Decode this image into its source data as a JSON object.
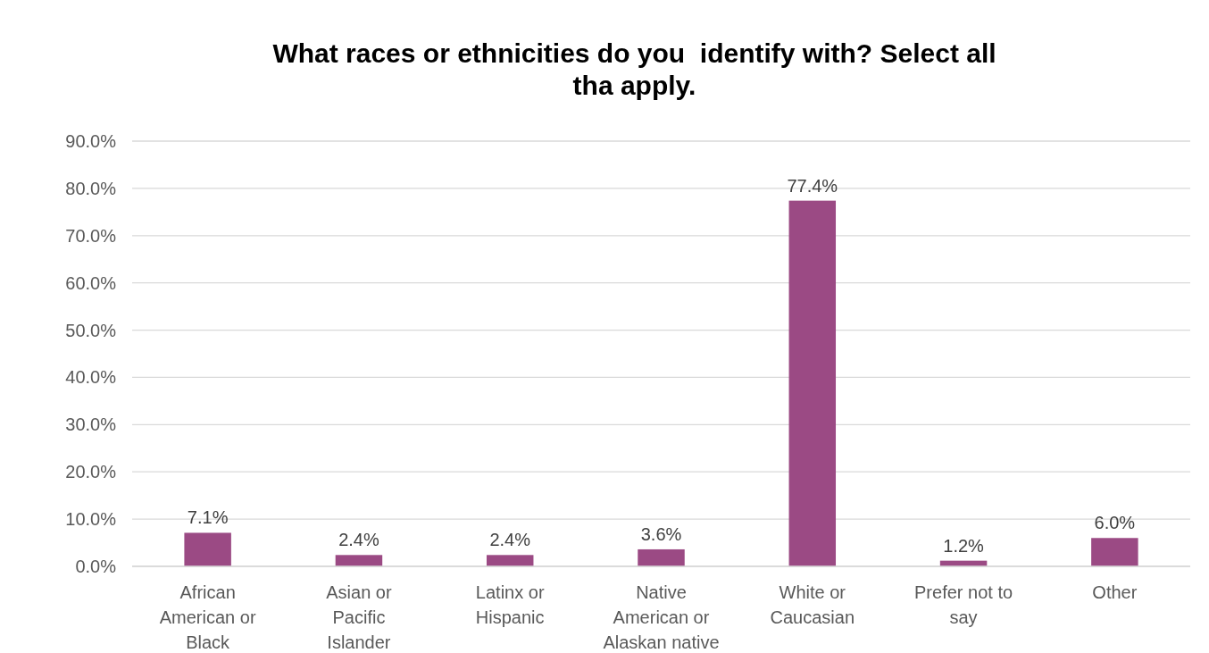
{
  "chart_data": {
    "type": "bar",
    "title": "What races or ethnicities do you  identify with? Select all tha apply.",
    "categories": [
      "African American or Black",
      "Asian or Pacific Islander",
      "Latinx or Hispanic",
      "Native American or Alaskan native",
      "White or Caucasian",
      "Prefer not to say",
      "Other"
    ],
    "values": [
      7.1,
      2.4,
      2.4,
      3.6,
      77.4,
      1.2,
      6.0
    ],
    "value_labels": [
      "7.1%",
      "2.4%",
      "2.4%",
      "3.6%",
      "77.4%",
      "1.2%",
      "6.0%"
    ],
    "color": "#9b4a84",
    "ylim": [
      0,
      90
    ],
    "yticks": [
      {
        "value": 0,
        "label": "0.0%"
      },
      {
        "value": 10,
        "label": "10.0%"
      },
      {
        "value": 20,
        "label": "20.0%"
      },
      {
        "value": 30,
        "label": "30.0%"
      },
      {
        "value": 40,
        "label": "40.0%"
      },
      {
        "value": 50,
        "label": "50.0%"
      },
      {
        "value": 60,
        "label": "60.0%"
      },
      {
        "value": 70,
        "label": "70.0%"
      },
      {
        "value": 80,
        "label": "80.0%"
      },
      {
        "value": 90,
        "label": "90.0%"
      }
    ],
    "grid": "y"
  }
}
